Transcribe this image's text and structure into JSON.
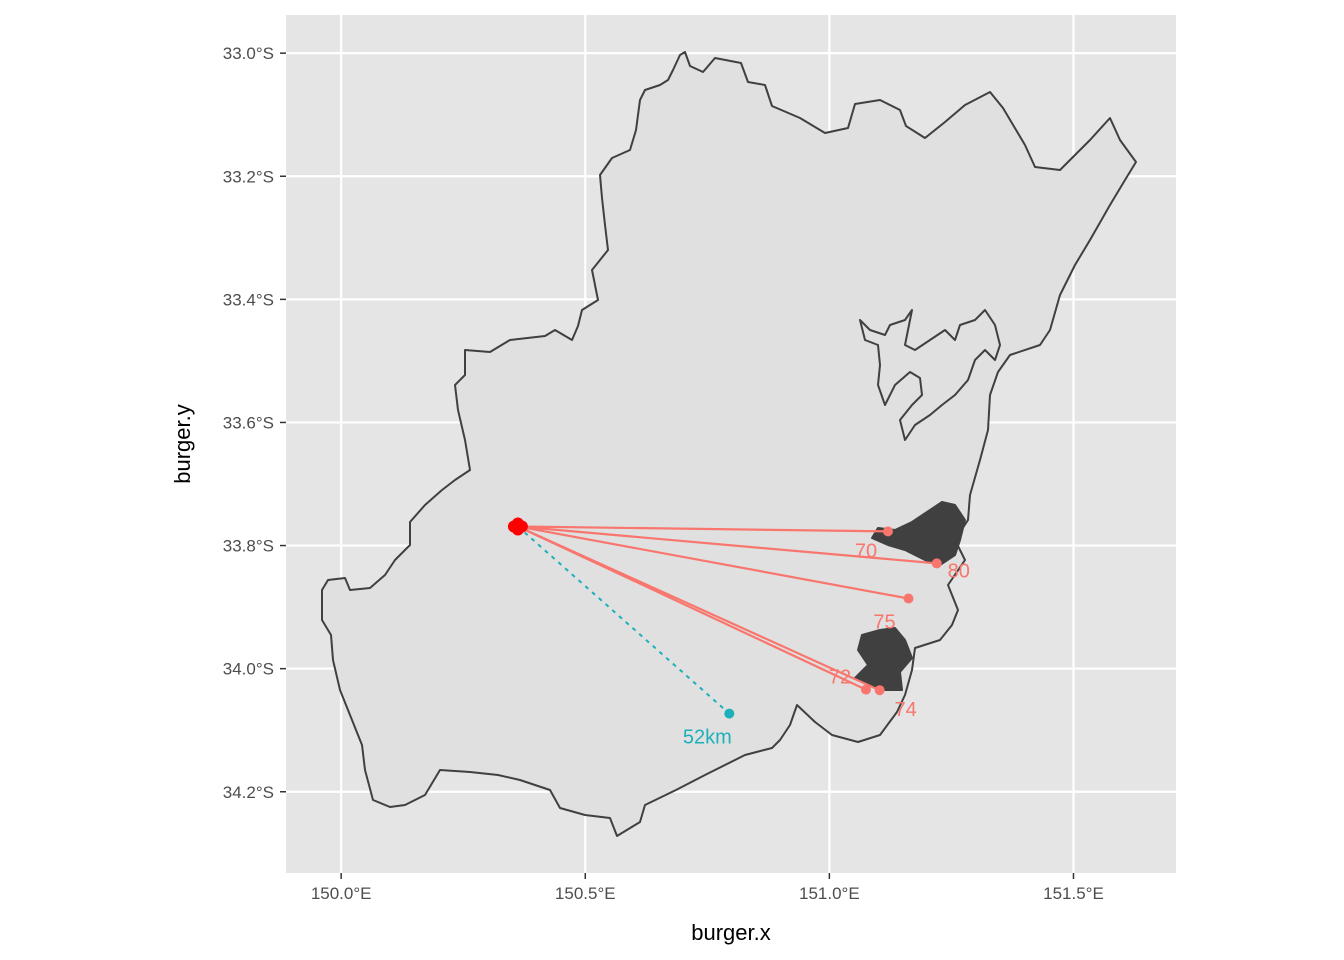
{
  "chart_data": {
    "type": "scatter",
    "xlabel": "burger.x",
    "ylabel": "burger.y",
    "xlim": [
      149.887,
      151.71
    ],
    "ylim": [
      -34.332,
      -32.938
    ],
    "x_ticks": [
      {
        "value": 150.0,
        "label": "150.0°E"
      },
      {
        "value": 150.5,
        "label": "150.5°E"
      },
      {
        "value": 151.0,
        "label": "151.0°E"
      },
      {
        "value": 151.5,
        "label": "151.5°E"
      }
    ],
    "y_ticks": [
      {
        "value": -33.0,
        "label": "33.0°S"
      },
      {
        "value": -33.2,
        "label": "33.2°S"
      },
      {
        "value": -33.4,
        "label": "33.4°S"
      },
      {
        "value": -33.6,
        "label": "33.6°S"
      },
      {
        "value": -33.8,
        "label": "33.8°S"
      },
      {
        "value": -34.0,
        "label": "34.0°S"
      },
      {
        "value": -34.2,
        "label": "34.2°S"
      }
    ],
    "grid": true,
    "colors": {
      "panel": "#e5e5e5",
      "region_fill": "#e0e0e0",
      "region_border": "#404040",
      "near_series": "#f8766d",
      "far_series": "#1cb1ba",
      "origin": "#ff0000"
    },
    "origin": {
      "x": 150.362,
      "y": -33.769
    },
    "series": [
      {
        "color_key": "near_series",
        "line": "solid",
        "points": [
          {
            "x": 151.12,
            "y": -33.777,
            "label": "70"
          },
          {
            "x": 151.22,
            "y": -33.829,
            "label": "80"
          },
          {
            "x": 151.162,
            "y": -33.886,
            "label": "75"
          },
          {
            "x": 151.075,
            "y": -34.034,
            "label": "72"
          },
          {
            "x": 151.103,
            "y": -34.035,
            "label": "74"
          }
        ]
      },
      {
        "color_key": "far_series",
        "line": "dotted",
        "points": [
          {
            "x": 150.795,
            "y": -34.073,
            "label": "52km"
          }
        ]
      }
    ]
  }
}
